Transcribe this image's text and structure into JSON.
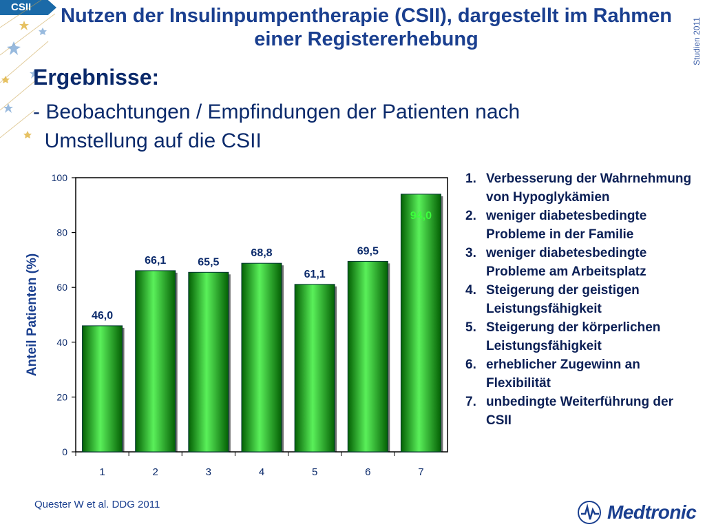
{
  "slide": {
    "tag": "CSII",
    "title": "Nutzen der Insulinpumpentherapie (CSII), dargestellt im Rahmen einer Registererhebung",
    "side_label": "Studien 2011",
    "heading": "Ergebnisse:",
    "subheading": "- Beobachtungen / Empfindungen der Patienten nach\n  Umstellung auf die CSII",
    "source": "Quester W et al. DDG 2011",
    "logo_text": "Medtronic"
  },
  "legend": {
    "items": [
      {
        "num": "1.",
        "text": "Verbesserung der Wahrnehmung von Hypoglykämien"
      },
      {
        "num": "2.",
        "text": "weniger diabetesbedingte Probleme in der Familie"
      },
      {
        "num": "3.",
        "text": " weniger diabetesbedingte Probleme am Arbeitsplatz"
      },
      {
        "num": "4.",
        "text": "Steigerung der geistigen Leistungsfähigkeit"
      },
      {
        "num": "5.",
        "text": "Steigerung der körperlichen Leistungsfähigkeit"
      },
      {
        "num": "6.",
        "text": " erheblicher Zugewinn an Flexibilität"
      },
      {
        "num": "7.",
        "text": "unbedingte Weiterführung der CSII"
      }
    ]
  },
  "chart_data": {
    "type": "bar",
    "categories": [
      "1",
      "2",
      "3",
      "4",
      "5",
      "6",
      "7"
    ],
    "values": [
      46.0,
      66.1,
      65.5,
      68.8,
      61.1,
      69.5,
      94.0
    ],
    "value_labels": [
      "46,0",
      "66,1",
      "65,5",
      "68,8",
      "61,1",
      "69,5",
      "94,0"
    ],
    "ylabel": "Anteil Patienten (%)",
    "yticks": [
      "0",
      "20",
      "40",
      "60",
      "80",
      "100"
    ],
    "ylim": [
      0,
      100
    ],
    "grid": false,
    "colors": {
      "bar": "#10b010",
      "bar_highlight": "#5af05a",
      "bar_dark": "#046004",
      "label_last": "#3cff3c"
    }
  }
}
